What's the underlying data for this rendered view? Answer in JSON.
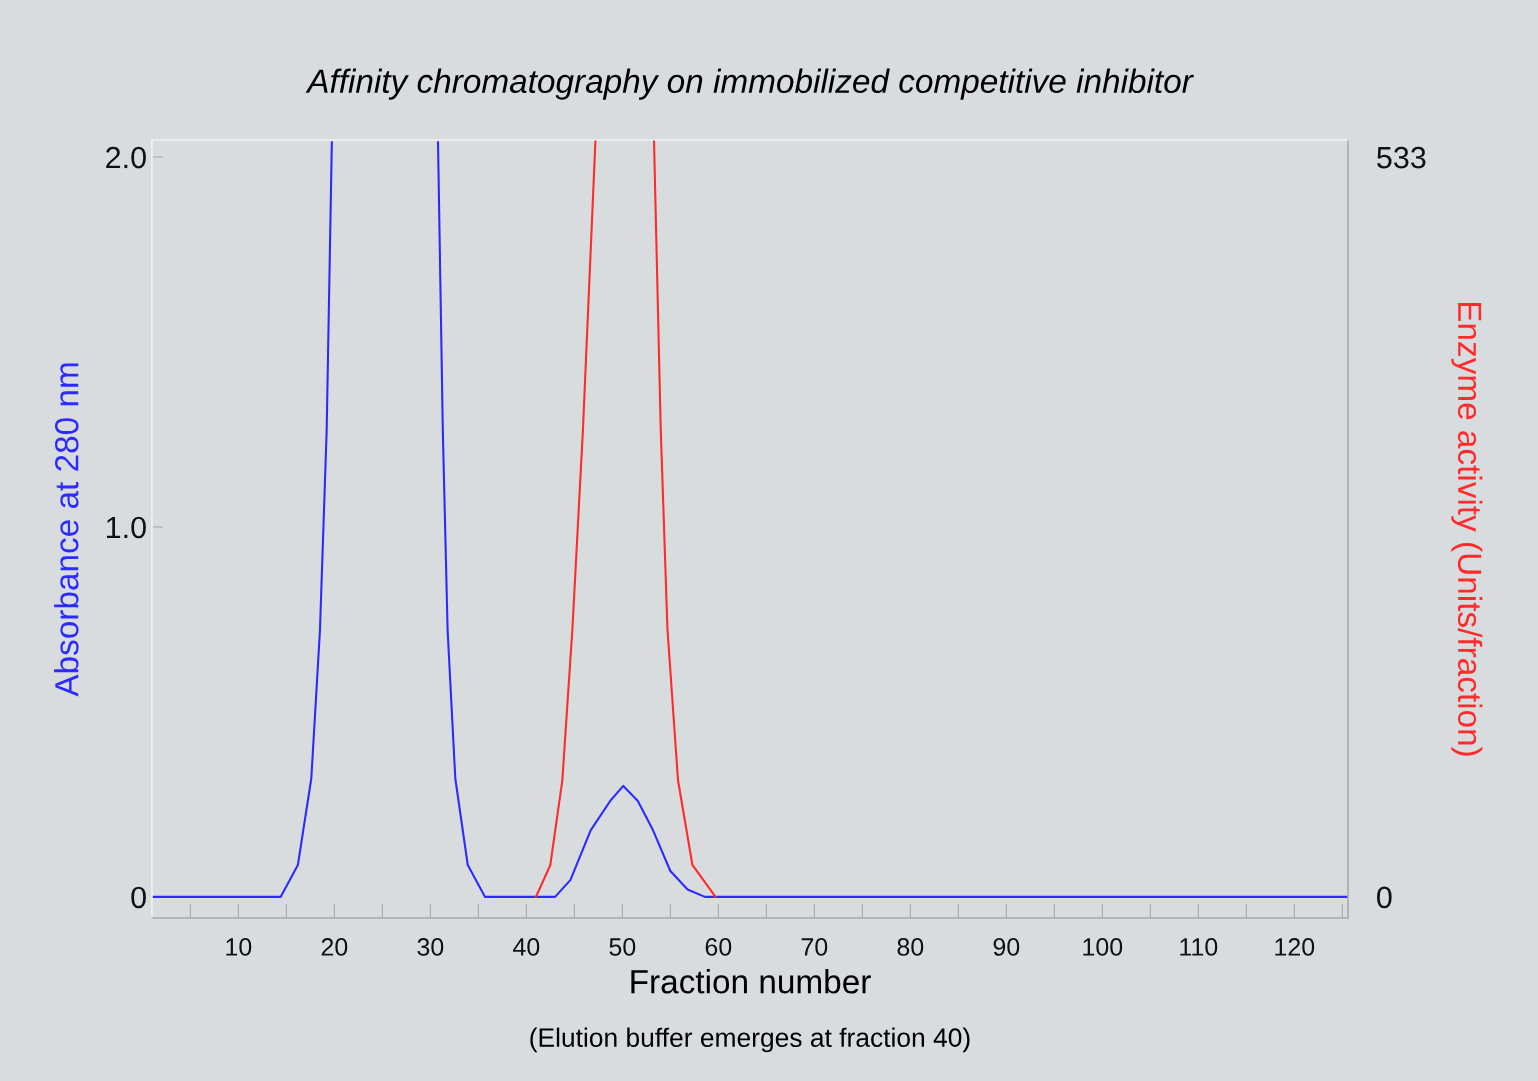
{
  "chart_data": {
    "type": "line",
    "title": "Affinity chromatography on immobilized competitive inhibitor",
    "xlabel": "Fraction number",
    "ylabel": "Absorbance at 280 nm",
    "y2label": "Enzyme activity (Units/fraction)",
    "annotations": [
      "(Elution buffer emerges at fraction 40)"
    ],
    "xlim": [
      1,
      125.6
    ],
    "xticks": [
      {
        "value": 5,
        "label": null
      },
      10,
      {
        "value": 15,
        "label": null
      },
      20,
      {
        "value": 25,
        "label": null
      },
      30,
      {
        "value": 35,
        "label": null
      },
      40,
      {
        "value": 45,
        "label": null
      },
      50,
      {
        "value": 55,
        "label": null
      },
      60,
      {
        "value": 65,
        "label": null
      },
      70,
      {
        "value": 75,
        "label": null
      },
      80,
      {
        "value": 85,
        "label": null
      },
      90,
      {
        "value": 95,
        "label": null
      },
      100,
      {
        "value": 105,
        "label": null
      },
      110,
      {
        "value": 115,
        "label": null
      },
      120,
      {
        "value": 125,
        "label": null
      }
    ],
    "ylim": [
      -0.057,
      2.046
    ],
    "yticks": [
      {
        "value": 0,
        "label": "0"
      },
      {
        "value": 1,
        "label": "1.0"
      },
      {
        "value": 2,
        "label": "2.0"
      }
    ],
    "y2lim": [
      -15.2,
      545.3
    ],
    "y2ticks": [
      0,
      533
    ],
    "grid": false,
    "legend": false,
    "marker": "none",
    "line_style": "solid",
    "series": [
      {
        "color": "#2b2bff",
        "axis": "y",
        "x": [
          1,
          14.4,
          16.2,
          17.6,
          18.5,
          19.2,
          19.74,
          25,
          30.8,
          31.3,
          31.8,
          32.6,
          33.9,
          35.7,
          43.0,
          44.6,
          46.7,
          48.75,
          50.1,
          51.6,
          53.2,
          55.0,
          56.8,
          58.6,
          125.6
        ],
        "values": [
          0,
          0,
          0.086,
          0.32,
          0.72,
          1.26,
          2.04,
          null,
          2.04,
          1.26,
          0.72,
          0.32,
          0.086,
          0,
          0,
          0.046,
          0.18,
          0.26,
          0.3,
          0.26,
          0.18,
          0.07,
          0.02,
          0,
          0
        ]
      },
      {
        "color": "#ff2b2b",
        "axis": "y2",
        "x": [
          41.0,
          42.5,
          43.75,
          44.8,
          45.9,
          47.2,
          50,
          53.3,
          54.0,
          54.7,
          55.8,
          57.3,
          59.7
        ],
        "values": [
          0,
          23,
          84,
          193,
          337,
          545,
          null,
          545,
          337,
          193,
          84,
          23,
          0
        ]
      }
    ]
  }
}
